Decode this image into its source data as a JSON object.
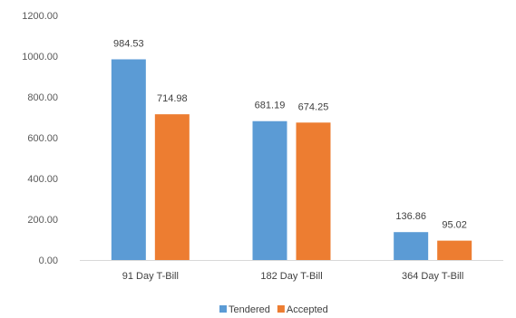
{
  "chart_data": {
    "type": "bar",
    "categories": [
      "91 Day T-Bill",
      "182 Day T-Bill",
      "364 Day T-Bill"
    ],
    "series": [
      {
        "name": "Tendered",
        "values": [
          984.53,
          681.19,
          136.86
        ],
        "labels": [
          "984.53",
          "681.19",
          "136.86"
        ],
        "color": "#5b9bd5"
      },
      {
        "name": "Accepted",
        "values": [
          714.98,
          674.25,
          95.02
        ],
        "labels": [
          "714.98",
          "674.25",
          "95.02"
        ],
        "color": "#ed7d31"
      }
    ],
    "ylim": [
      0,
      1200
    ],
    "yticks": [
      0,
      200,
      400,
      600,
      800,
      1000,
      1200
    ],
    "ytick_labels": [
      "0.00",
      "200.00",
      "400.00",
      "600.00",
      "800.00",
      "1000.00",
      "1200.00"
    ],
    "grid": false,
    "legend_position": "bottom",
    "axis_color": "#d9d9d9"
  }
}
